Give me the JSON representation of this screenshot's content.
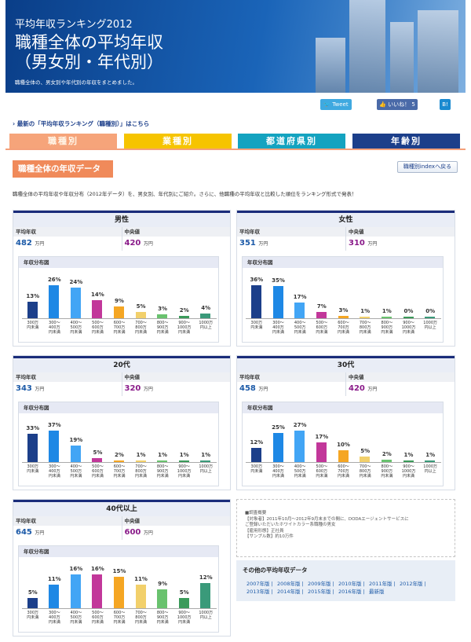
{
  "header": {
    "subtitle": "平均年収ランキング2012",
    "title_line1": "職種全体の平均年収",
    "title_line2": "（男女別・年代別）",
    "description": "職種全体の、男女別や年代別の年収をまとめました。"
  },
  "social": {
    "tweet": "Tweet",
    "like": "いいね！",
    "like_count": "5",
    "hatena": "B!"
  },
  "breadcrumb": "最新の「平均年収ランキング（職種別）」はこちら",
  "tabs": [
    {
      "label": "職種別",
      "color": "#f6a47a",
      "text_color": "#fff6e8"
    },
    {
      "label": "業種別",
      "color": "#f6c400",
      "text_color": "#ffffff"
    },
    {
      "label": "都道府県別",
      "color": "#14a3c0",
      "text_color": "#ffffff"
    },
    {
      "label": "年齢別",
      "color": "#1c3f8a",
      "text_color": "#ffffff"
    }
  ],
  "section": {
    "title": "職種全体の年収データ",
    "back_button": "職種別indexへ戻る"
  },
  "intro": "職種全体の平均年収や年収分布（2012年データ）を、男女別、年代別にご紹介。さらに、他職種の平均年収と比較した順位をランキング形式で発表！",
  "labels": {
    "avg": "平均年収",
    "median": "中央値",
    "unit": "万円",
    "dist": "年収分布図"
  },
  "x_labels": [
    [
      "300万",
      "円未満"
    ],
    [
      "300～",
      "400万",
      "円未満"
    ],
    [
      "400～",
      "500万",
      "円未満"
    ],
    [
      "500～",
      "600万",
      "円未満"
    ],
    [
      "600～",
      "700万",
      "円未満"
    ],
    [
      "700～",
      "800万",
      "円未満"
    ],
    [
      "800～",
      "900万",
      "円未満"
    ],
    [
      "900～",
      "1000万",
      "円未満"
    ],
    [
      "1000万",
      "円以上"
    ]
  ],
  "bar_colors": [
    "#1c3f8a",
    "#1e88e5",
    "#42a5f5",
    "#c2379a",
    "#f5a623",
    "#f2d06b",
    "#69c26e",
    "#3b9a5a",
    "#3a9a7a"
  ],
  "panels": [
    {
      "title": "男性",
      "avg": "482",
      "median": "420",
      "values": [
        13,
        26,
        24,
        14,
        9,
        5,
        3,
        2,
        4
      ]
    },
    {
      "title": "女性",
      "avg": "351",
      "median": "310",
      "values": [
        36,
        35,
        17,
        7,
        3,
        1,
        1,
        0,
        0
      ]
    },
    {
      "title": "20代",
      "avg": "343",
      "median": "320",
      "values": [
        33,
        37,
        19,
        5,
        2,
        1,
        1,
        1,
        1
      ]
    },
    {
      "title": "30代",
      "avg": "458",
      "median": "420",
      "values": [
        12,
        25,
        27,
        17,
        10,
        5,
        2,
        1,
        1
      ]
    },
    {
      "title": "40代以上",
      "avg": "645",
      "median": "600",
      "values": [
        5,
        11,
        16,
        16,
        15,
        11,
        9,
        5,
        12
      ]
    }
  ],
  "survey": {
    "heading": "■調査概要",
    "lines": [
      "【対象者】2011年10月～2012年9月末までの間に、DODAエージェントサービスに",
      "ご登録いただいたホワイトカラー系職種の男女",
      "【雇用形態】正社員",
      "【サンプル数】約10万件"
    ]
  },
  "other": {
    "title": "その他の平均年収データ",
    "years": [
      "2007年版",
      "2008年版",
      "2009年版",
      "2010年版",
      "2011年版",
      "2012年版",
      "2013年版",
      "2014年版",
      "2015年版",
      "2016年版",
      "最新版"
    ]
  }
}
